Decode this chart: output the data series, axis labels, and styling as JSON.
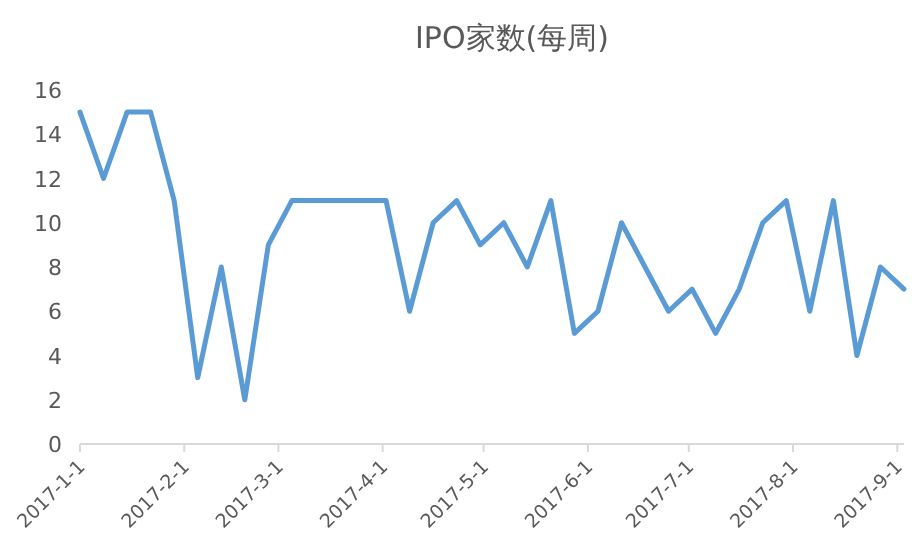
{
  "chart_data": {
    "type": "line",
    "title": "IPO家数(每周)",
    "x": [
      "2017-01-01",
      "2017-01-08",
      "2017-01-15",
      "2017-01-22",
      "2017-01-29",
      "2017-02-05",
      "2017-02-12",
      "2017-02-19",
      "2017-02-26",
      "2017-03-05",
      "2017-03-12",
      "2017-03-19",
      "2017-03-26",
      "2017-04-02",
      "2017-04-09",
      "2017-04-16",
      "2017-04-23",
      "2017-04-30",
      "2017-05-07",
      "2017-05-14",
      "2017-05-21",
      "2017-05-28",
      "2017-06-04",
      "2017-06-11",
      "2017-06-18",
      "2017-06-25",
      "2017-07-02",
      "2017-07-09",
      "2017-07-16",
      "2017-07-23",
      "2017-07-30",
      "2017-08-06",
      "2017-08-13",
      "2017-08-20",
      "2017-08-27",
      "2017-09-03"
    ],
    "values": [
      15,
      12,
      15,
      15,
      11,
      3,
      8,
      2,
      9,
      11,
      11,
      11,
      11,
      11,
      6,
      10,
      11,
      9,
      10,
      8,
      11,
      5,
      6,
      10,
      8,
      6,
      7,
      5,
      7,
      10,
      11,
      6,
      11,
      4,
      8,
      7
    ],
    "color": "#5b9bd5",
    "xlim": [
      "2017-01-01",
      "2017-09-03"
    ],
    "xticks": [
      {
        "value": "2017-01-01",
        "label": "2017-1-1"
      },
      {
        "value": "2017-02-01",
        "label": "2017-2-1"
      },
      {
        "value": "2017-03-01",
        "label": "2017-3-1"
      },
      {
        "value": "2017-04-01",
        "label": "2017-4-1"
      },
      {
        "value": "2017-05-01",
        "label": "2017-5-1"
      },
      {
        "value": "2017-06-01",
        "label": "2017-6-1"
      },
      {
        "value": "2017-07-01",
        "label": "2017-7-1"
      },
      {
        "value": "2017-08-01",
        "label": "2017-8-1"
      },
      {
        "value": "2017-09-01",
        "label": "2017-9-1"
      }
    ],
    "ylim": [
      0,
      16
    ],
    "yticks": [
      0,
      2,
      4,
      6,
      8,
      10,
      12,
      14,
      16
    ]
  }
}
